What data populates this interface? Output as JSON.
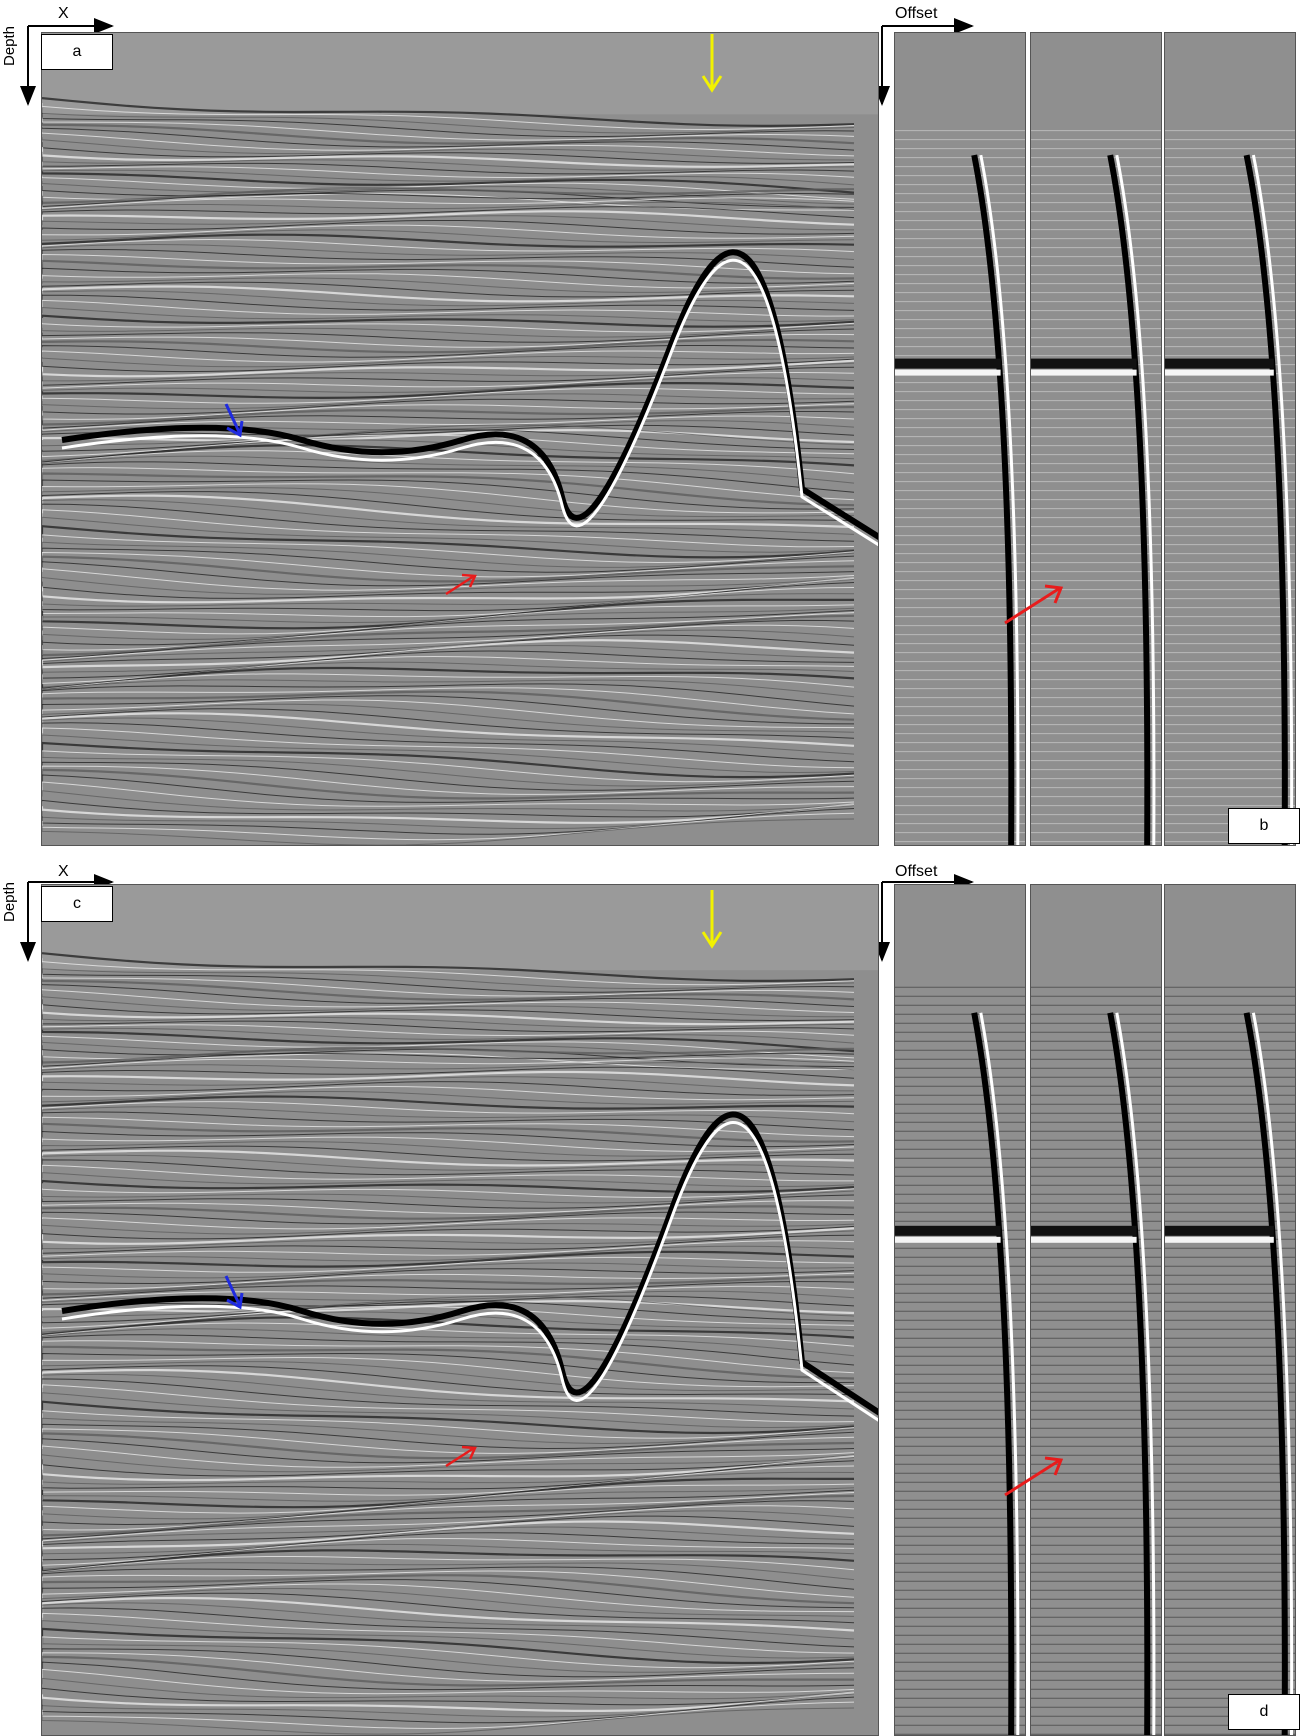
{
  "panels": [
    {
      "id": "a",
      "label": "a",
      "x_axis_label": "X",
      "depth_label": "Depth"
    },
    {
      "id": "b",
      "label": "b",
      "x_axis_label": "Offset"
    },
    {
      "id": "c",
      "label": "c",
      "x_axis_label": "X",
      "depth_label": "Depth"
    },
    {
      "id": "d",
      "label": "d",
      "x_axis_label": "Offset"
    }
  ],
  "annotation_colors": {
    "seafloor_arrow": "#f2f200",
    "salt_base_arrow": "#1f2be0",
    "subsalt_reflector_arrow": "#e81c1c"
  },
  "icons": [
    "down-arrow-icon",
    "diagonal-arrow-icon"
  ]
}
